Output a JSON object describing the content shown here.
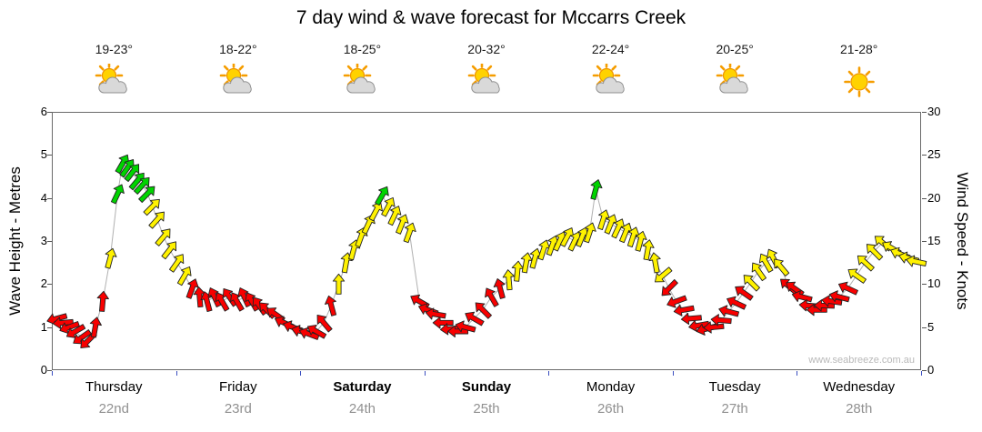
{
  "title": "7 day wind & wave forecast for Mccarrs Creek",
  "watermark": "www.seabreeze.com.au",
  "days": [
    {
      "name": "Thursday",
      "date": "22nd",
      "temp": "19-23°",
      "icon": "sun-cloud",
      "bold": false
    },
    {
      "name": "Friday",
      "date": "23rd",
      "temp": "18-22°",
      "icon": "sun-cloud",
      "bold": false
    },
    {
      "name": "Saturday",
      "date": "24th",
      "temp": "18-25°",
      "icon": "sun-cloud",
      "bold": true
    },
    {
      "name": "Sunday",
      "date": "25th",
      "temp": "20-32°",
      "icon": "sun-cloud",
      "bold": true
    },
    {
      "name": "Monday",
      "date": "26th",
      "temp": "22-24°",
      "icon": "sun-cloud",
      "bold": false
    },
    {
      "name": "Tuesday",
      "date": "27th",
      "temp": "20-25°",
      "icon": "sun-cloud",
      "bold": false
    },
    {
      "name": "Wednesday",
      "date": "28th",
      "temp": "21-28°",
      "icon": "sun",
      "bold": false
    }
  ],
  "axes": {
    "left_label": "Wave Height - Metres",
    "right_label": "Wind Speed - Knots",
    "left_ticks": [
      0,
      1,
      2,
      3,
      4,
      5,
      6
    ],
    "right_ticks": [
      0,
      5,
      10,
      15,
      20,
      25,
      30
    ]
  },
  "chart_data": {
    "type": "scatter",
    "subtype": "wind-direction-arrows",
    "title": "7 day wind & wave forecast for Mccarrs Creek",
    "x": {
      "unit": "day",
      "range": [
        0,
        7
      ],
      "categories": [
        "Thursday 22nd",
        "Friday 23rd",
        "Saturday 24th",
        "Sunday 25th",
        "Monday 26th",
        "Tuesday 27th",
        "Wednesday 28th"
      ]
    },
    "y_left": {
      "label": "Wave Height - Metres",
      "range": [
        0,
        6
      ],
      "ticks": [
        0,
        1,
        2,
        3,
        4,
        5,
        6
      ]
    },
    "y_right": {
      "label": "Wind Speed - Knots",
      "range": [
        0,
        30
      ],
      "ticks": [
        0,
        5,
        10,
        15,
        20,
        25,
        30
      ]
    },
    "grid": false,
    "legend": "none",
    "speed_colors": {
      "light_0_10": "#f80000",
      "moderate_10_20": "#fff200",
      "fresh_20_30": "#00d400"
    },
    "line_color": "#b0b0b0",
    "point_format": [
      "day",
      "knots",
      "direction_deg"
    ],
    "points": [
      [
        0.04,
        6.0,
        255
      ],
      [
        0.09,
        5.5,
        265
      ],
      [
        0.14,
        5.0,
        250
      ],
      [
        0.19,
        4.5,
        240
      ],
      [
        0.24,
        3.8,
        235
      ],
      [
        0.29,
        3.4,
        225
      ],
      [
        0.35,
        5.0,
        10
      ],
      [
        0.41,
        8.0,
        5
      ],
      [
        0.47,
        13.0,
        15
      ],
      [
        0.53,
        20.5,
        25
      ],
      [
        0.57,
        24.0,
        30
      ],
      [
        0.61,
        23.5,
        35
      ],
      [
        0.65,
        23.0,
        38
      ],
      [
        0.69,
        22.0,
        40
      ],
      [
        0.73,
        21.5,
        42
      ],
      [
        0.77,
        20.5,
        45
      ],
      [
        0.81,
        19.0,
        45
      ],
      [
        0.85,
        17.5,
        42
      ],
      [
        0.9,
        15.5,
        40
      ],
      [
        0.95,
        14.0,
        38
      ],
      [
        1.01,
        12.5,
        35
      ],
      [
        1.07,
        11.0,
        30
      ],
      [
        1.13,
        9.5,
        20
      ],
      [
        1.19,
        8.5,
        355
      ],
      [
        1.25,
        8.0,
        345
      ],
      [
        1.31,
        8.5,
        335
      ],
      [
        1.37,
        8.0,
        330
      ],
      [
        1.43,
        8.5,
        325
      ],
      [
        1.49,
        8.0,
        330
      ],
      [
        1.55,
        8.5,
        335
      ],
      [
        1.61,
        8.0,
        330
      ],
      [
        1.67,
        7.5,
        325
      ],
      [
        1.73,
        7.0,
        315
      ],
      [
        1.8,
        6.5,
        305
      ],
      [
        1.87,
        5.5,
        295
      ],
      [
        1.94,
        5.0,
        290
      ],
      [
        2.01,
        4.5,
        285
      ],
      [
        2.07,
        4.2,
        290
      ],
      [
        2.13,
        4.5,
        300
      ],
      [
        2.19,
        5.5,
        320
      ],
      [
        2.25,
        7.5,
        345
      ],
      [
        2.31,
        10.0,
        0
      ],
      [
        2.37,
        12.5,
        10
      ],
      [
        2.43,
        14.0,
        15
      ],
      [
        2.49,
        15.5,
        20
      ],
      [
        2.55,
        17.0,
        25
      ],
      [
        2.61,
        18.5,
        28
      ],
      [
        2.66,
        20.3,
        30
      ],
      [
        2.71,
        19.0,
        28
      ],
      [
        2.76,
        18.0,
        25
      ],
      [
        2.82,
        17.0,
        22
      ],
      [
        2.88,
        16.0,
        20
      ],
      [
        2.96,
        8.0,
        300
      ],
      [
        3.03,
        7.0,
        290
      ],
      [
        3.09,
        6.5,
        280
      ],
      [
        3.15,
        5.5,
        270
      ],
      [
        3.21,
        4.8,
        265
      ],
      [
        3.27,
        4.5,
        270
      ],
      [
        3.33,
        5.0,
        285
      ],
      [
        3.4,
        6.0,
        300
      ],
      [
        3.47,
        7.0,
        315
      ],
      [
        3.54,
        8.5,
        330
      ],
      [
        3.61,
        9.5,
        345
      ],
      [
        3.68,
        10.5,
        355
      ],
      [
        3.75,
        11.5,
        5
      ],
      [
        3.82,
        12.5,
        10
      ],
      [
        3.89,
        13.0,
        15
      ],
      [
        3.96,
        14.0,
        18
      ],
      [
        4.03,
        14.5,
        20
      ],
      [
        4.09,
        15.0,
        25
      ],
      [
        4.15,
        15.5,
        28
      ],
      [
        4.21,
        15.0,
        25
      ],
      [
        4.27,
        15.5,
        22
      ],
      [
        4.33,
        16.0,
        18
      ],
      [
        4.38,
        21.0,
        15
      ],
      [
        4.44,
        17.5,
        18
      ],
      [
        4.5,
        17.0,
        22
      ],
      [
        4.56,
        16.5,
        25
      ],
      [
        4.62,
        16.0,
        22
      ],
      [
        4.68,
        15.5,
        18
      ],
      [
        4.74,
        15.0,
        15
      ],
      [
        4.8,
        14.0,
        10
      ],
      [
        4.86,
        12.5,
        350
      ],
      [
        4.92,
        11.0,
        230
      ],
      [
        4.97,
        9.5,
        225
      ],
      [
        5.03,
        8.0,
        250
      ],
      [
        5.09,
        7.0,
        260
      ],
      [
        5.15,
        6.0,
        265
      ],
      [
        5.21,
        5.2,
        260
      ],
      [
        5.27,
        4.8,
        255
      ],
      [
        5.33,
        5.0,
        265
      ],
      [
        5.39,
        5.8,
        275
      ],
      [
        5.45,
        6.8,
        285
      ],
      [
        5.51,
        7.8,
        295
      ],
      [
        5.57,
        9.0,
        305
      ],
      [
        5.63,
        10.2,
        315
      ],
      [
        5.69,
        11.5,
        325
      ],
      [
        5.75,
        12.5,
        330
      ],
      [
        5.81,
        13.0,
        332
      ],
      [
        5.87,
        12.0,
        320
      ],
      [
        5.93,
        9.8,
        310
      ],
      [
        5.98,
        9.5,
        305
      ],
      [
        6.04,
        8.5,
        285
      ],
      [
        6.1,
        7.5,
        275
      ],
      [
        6.16,
        7.0,
        270
      ],
      [
        6.22,
        7.5,
        272
      ],
      [
        6.28,
        8.0,
        278
      ],
      [
        6.34,
        8.5,
        285
      ],
      [
        6.41,
        9.5,
        295
      ],
      [
        6.48,
        11.0,
        305
      ],
      [
        6.55,
        12.5,
        312
      ],
      [
        6.62,
        13.8,
        315
      ],
      [
        6.69,
        14.8,
        310
      ],
      [
        6.76,
        14.2,
        300
      ],
      [
        6.83,
        13.5,
        292
      ],
      [
        6.9,
        13.0,
        285
      ],
      [
        6.96,
        12.6,
        282
      ]
    ]
  }
}
